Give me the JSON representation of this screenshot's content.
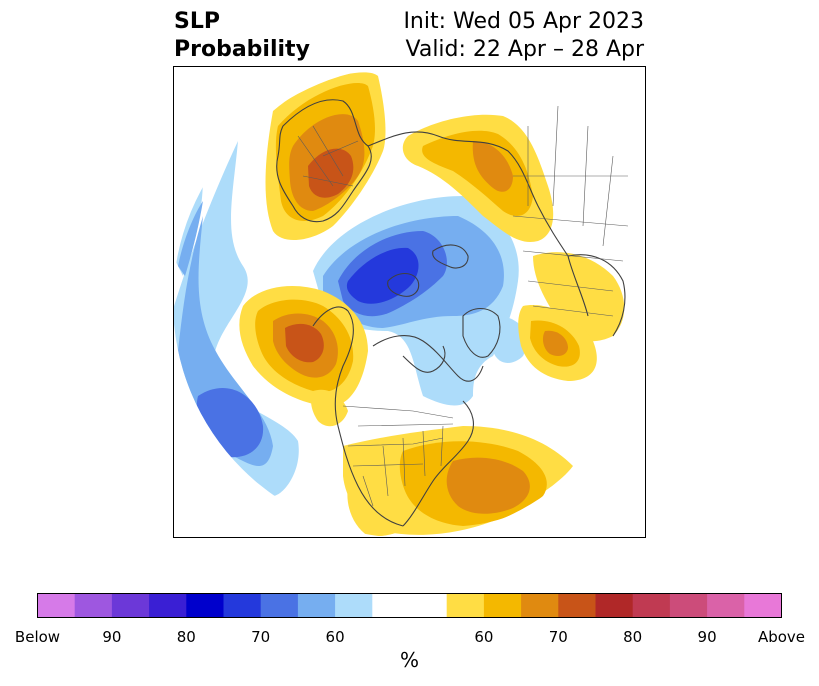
{
  "title": {
    "variable": "SLP",
    "product": "Probability",
    "init": "Init: Wed 05 Apr 2023",
    "valid": "Valid: 22 Apr – 28 Apr"
  },
  "colorbar": {
    "unit_label": "%",
    "tick_labels": [
      "Below",
      "90",
      "80",
      "70",
      "60",
      "60",
      "70",
      "80",
      "90",
      "Above"
    ],
    "below_colors": [
      "#d67ae8",
      "#9e57e0",
      "#6c38d8",
      "#3a1fd4",
      "#0000cc",
      "#2439dc",
      "#4a72e4",
      "#76aef0",
      "#addcfa"
    ],
    "neutral_color": "#ffffff",
    "above_colors": [
      "#ffdd44",
      "#f4b800",
      "#e08a10",
      "#c85418",
      "#b02828",
      "#c03a52",
      "#cc4c7a",
      "#da62a8",
      "#e878d8"
    ]
  },
  "map": {
    "projection": "north-polar-stereographic",
    "regions": [
      {
        "name": "europe-above-high",
        "category": "above",
        "probability": 75
      },
      {
        "name": "siberia-above",
        "category": "above",
        "probability": 60
      },
      {
        "name": "north-pacific-above",
        "category": "above",
        "probability": 75
      },
      {
        "name": "alaska-above",
        "category": "above",
        "probability": 60
      },
      {
        "name": "west-atlantic-above",
        "category": "above",
        "probability": 70
      },
      {
        "name": "arctic-below",
        "category": "below",
        "probability": 75
      },
      {
        "name": "canada-below",
        "category": "below",
        "probability": 60
      },
      {
        "name": "atlantic-below",
        "category": "below",
        "probability": 65
      }
    ]
  }
}
